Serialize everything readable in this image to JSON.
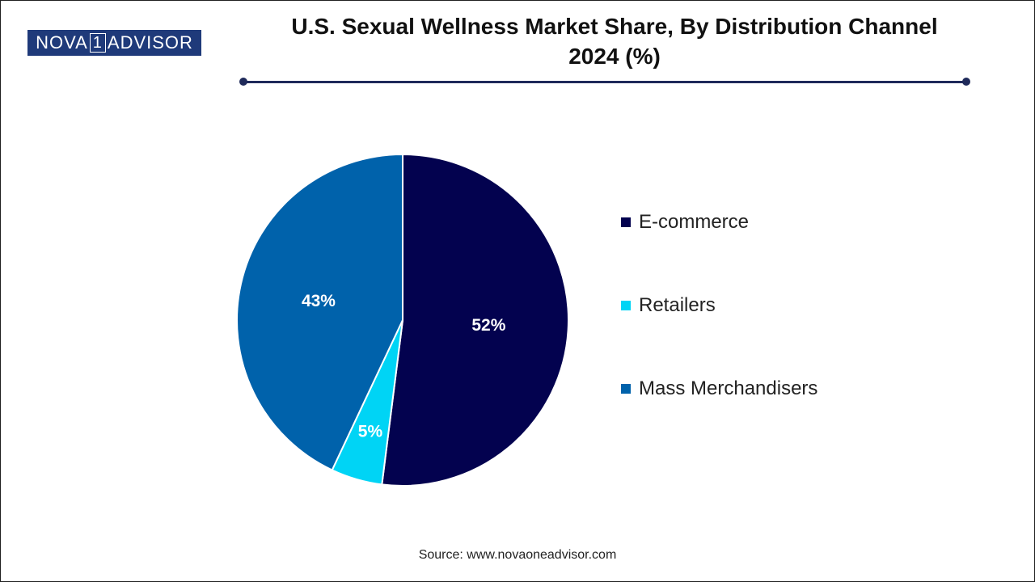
{
  "logo": {
    "left_text": "NOVA",
    "one_text": "1",
    "right_text": "ADVISOR"
  },
  "title_line1": "U.S. Sexual Wellness Market Share, By Distribution Channel",
  "title_line2": "2024 (%)",
  "source": "Source: www.novaoneadvisor.com",
  "chart_data": {
    "type": "pie",
    "title": "U.S. Sexual Wellness Market Share, By Distribution Channel 2024 (%)",
    "categories": [
      "E-commerce",
      "Retailers",
      "Mass Merchandisers"
    ],
    "values": [
      52,
      5,
      43
    ],
    "labels": [
      "52%",
      "5%",
      "43%"
    ],
    "colors": [
      "#03024f",
      "#00d4f5",
      "#0062ab"
    ],
    "legend_placement": "right",
    "start_angle": "12 o'clock, clockwise"
  },
  "legend": [
    {
      "label": "E-commerce",
      "color": "#03024f"
    },
    {
      "label": "Retailers",
      "color": "#00d4f5"
    },
    {
      "label": "Mass Merchandisers",
      "color": "#0062ab"
    }
  ]
}
